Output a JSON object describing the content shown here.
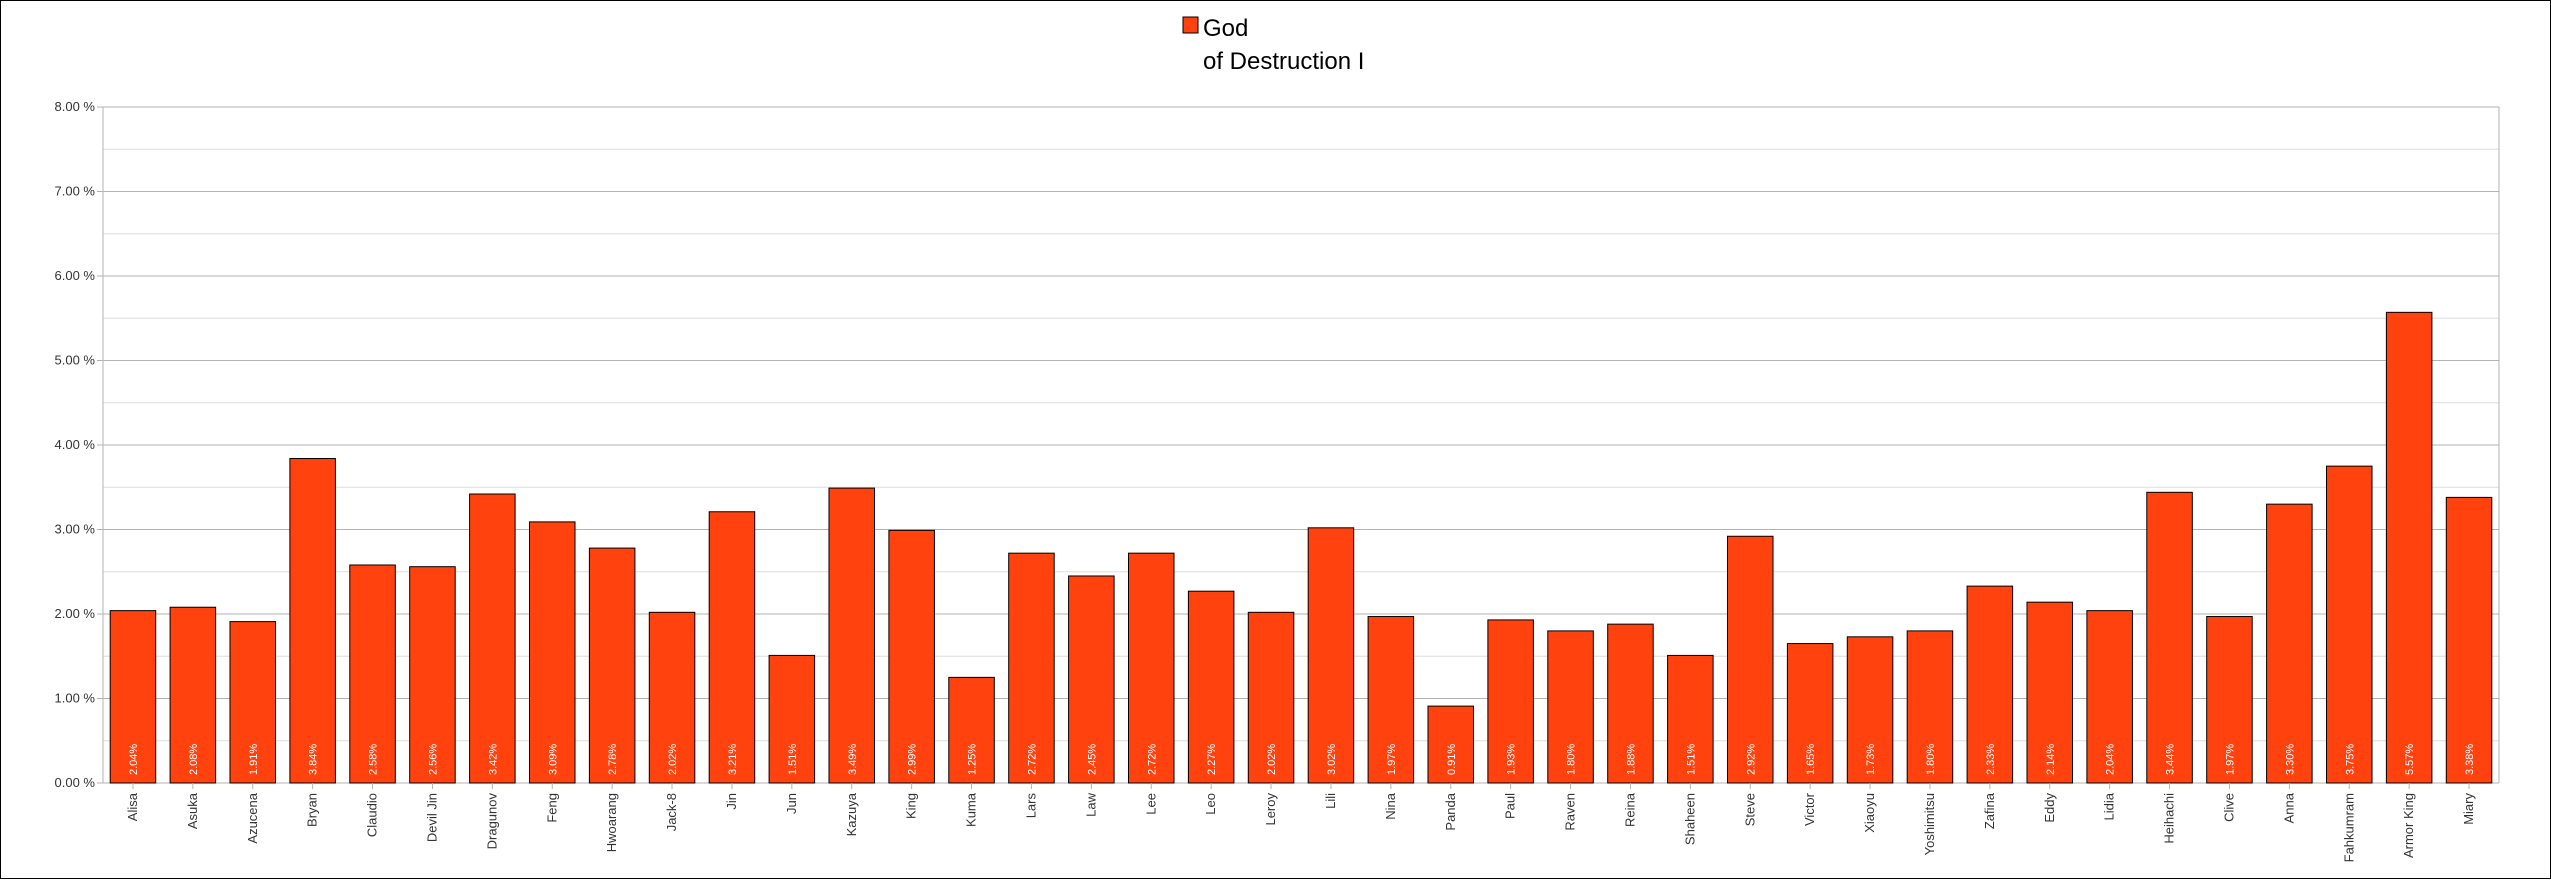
{
  "chart_data": {
    "type": "bar",
    "legend": {
      "position": "top",
      "lines": [
        "God",
        "of Destruction I"
      ]
    },
    "series": [
      {
        "name": "God of Destruction I",
        "color": "#ff420e",
        "values": [
          2.04,
          2.08,
          1.91,
          3.84,
          2.58,
          2.56,
          3.42,
          3.09,
          2.78,
          2.02,
          3.21,
          1.51,
          3.49,
          2.99,
          1.25,
          2.72,
          2.45,
          2.72,
          2.27,
          2.02,
          3.02,
          1.97,
          0.91,
          1.93,
          1.8,
          1.88,
          1.51,
          2.92,
          1.65,
          1.73,
          1.8,
          2.33,
          2.14,
          2.04,
          3.44,
          1.97,
          3.3,
          3.75,
          5.57,
          3.38
        ]
      }
    ],
    "categories": [
      "Alisa",
      "Asuka",
      "Azucena",
      "Bryan",
      "Claudio",
      "Devil Jin",
      "Dragunov",
      "Feng",
      "Hwoarang",
      "Jack-8",
      "Jin",
      "Jun",
      "Kazuya",
      "King",
      "Kuma",
      "Lars",
      "Law",
      "Lee",
      "Leo",
      "Leroy",
      "Lili",
      "Nina",
      "Panda",
      "Paul",
      "Raven",
      "Reina",
      "Shaheen",
      "Steve",
      "Victor",
      "Xiaoyu",
      "Yoshimitsu",
      "Zafina",
      "Eddy",
      "Lidia",
      "Heihachi",
      "Clive",
      "Anna",
      "Fahkumram",
      "Armor King",
      "Miary"
    ],
    "data_labels": [
      "2.04%",
      "2.08%",
      "1.91%",
      "3.84%",
      "2.58%",
      "2.56%",
      "3.42%",
      "3.09%",
      "2.78%",
      "2.02%",
      "3.21%",
      "1.51%",
      "3.49%",
      "2.99%",
      "1.25%",
      "2.72%",
      "2.45%",
      "2.72%",
      "2.27%",
      "2.02%",
      "3.02%",
      "1.97%",
      "0.91%",
      "1.93%",
      "1.80%",
      "1.88%",
      "1.51%",
      "2.92%",
      "1.65%",
      "1.73%",
      "1.80%",
      "2.33%",
      "2.14%",
      "2.04%",
      "3.44%",
      "1.97%",
      "3.30%",
      "3.75%",
      "5.57%",
      "3.38%"
    ],
    "y_ticks": [
      {
        "value": 0,
        "label": "0.00 %"
      },
      {
        "value": 1,
        "label": "1.00 %"
      },
      {
        "value": 2,
        "label": "2.00 %"
      },
      {
        "value": 3,
        "label": "3.00 %"
      },
      {
        "value": 4,
        "label": "4.00 %"
      },
      {
        "value": 5,
        "label": "5.00 %"
      },
      {
        "value": 6,
        "label": "6.00 %"
      },
      {
        "value": 7,
        "label": "7.00 %"
      },
      {
        "value": 8,
        "label": "8.00 %"
      }
    ],
    "ylim": [
      0,
      8
    ],
    "minor_grid_step": 0.5,
    "grid": true,
    "title": "",
    "xlabel": "",
    "ylabel": ""
  }
}
